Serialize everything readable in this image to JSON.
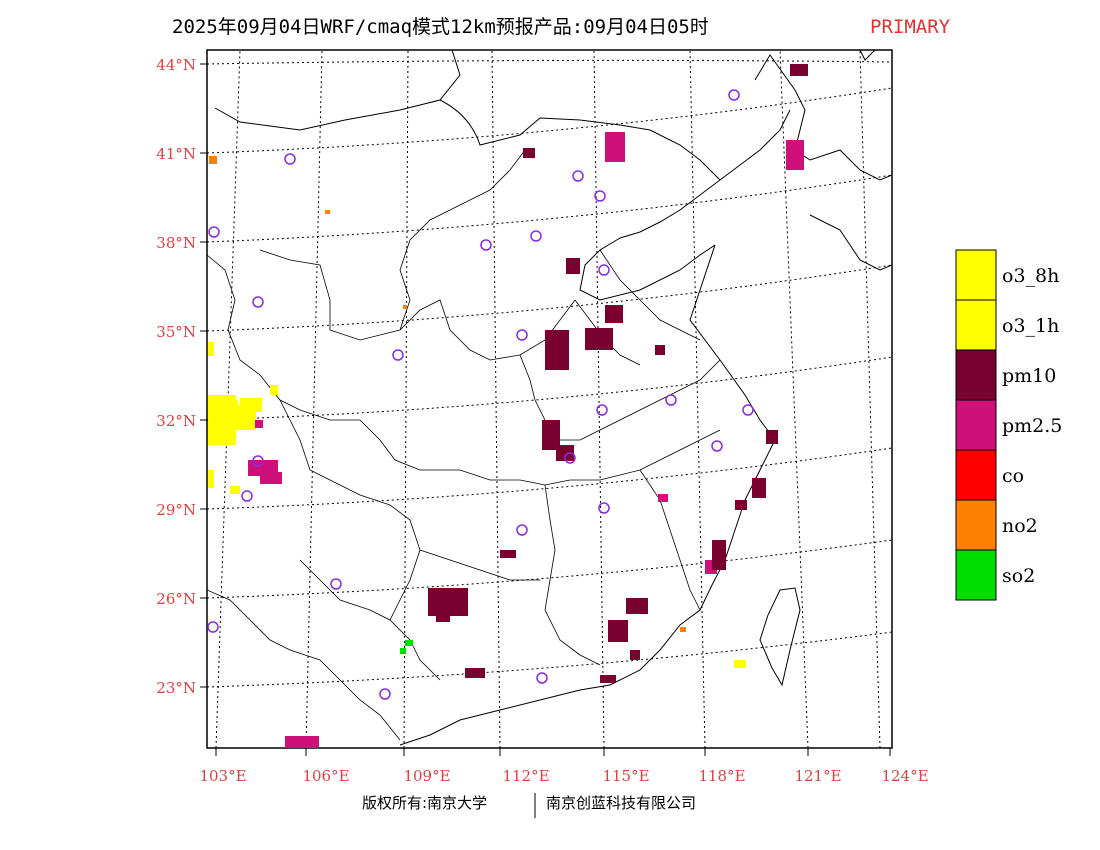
{
  "title": {
    "main": "2025年09月04日WRF/cmaq模式12km预报产品:09月04日05时",
    "accent": "PRIMARY"
  },
  "footer": {
    "left": "版权所有:南京大学",
    "right": "南京创蓝科技有限公司"
  },
  "axes": {
    "lat_labels": [
      "44°N",
      "41°N",
      "38°N",
      "35°N",
      "32°N",
      "29°N",
      "26°N",
      "23°N"
    ],
    "lon_labels": [
      "103°E",
      "106°E",
      "109°E",
      "112°E",
      "115°E",
      "118°E",
      "121°E",
      "124°E"
    ]
  },
  "legend": {
    "items": [
      {
        "label": "o3_8h",
        "color": "#ffff00"
      },
      {
        "label": "o3_1h",
        "color": "#ffff00"
      },
      {
        "label": "pm10",
        "color": "#7a0030"
      },
      {
        "label": "pm2.5",
        "color": "#d0107a"
      },
      {
        "label": "co",
        "color": "#ff0000"
      },
      {
        "label": "no2",
        "color": "#ff8000"
      },
      {
        "label": "so2",
        "color": "#00dd00"
      }
    ]
  }
}
